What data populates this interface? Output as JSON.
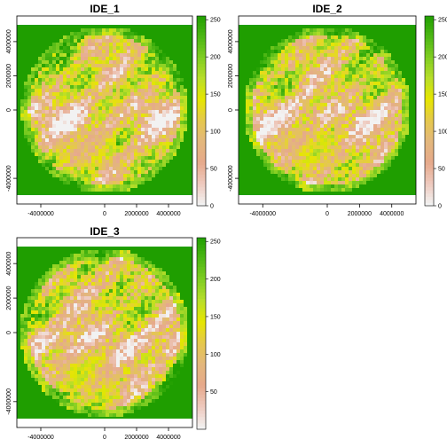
{
  "chart_data": [
    {
      "type": "heatmap",
      "title": "IDE_1",
      "x_ticks": [
        -4000000,
        0,
        2000000,
        4000000
      ],
      "x_tick_labels": [
        "-4000000",
        "0",
        "2000000",
        "4000000"
      ],
      "y_ticks": [
        -4000000,
        0,
        2000000,
        4000000
      ],
      "y_tick_labels": [
        "-4000000",
        "0",
        "2000000",
        "4000000"
      ],
      "xlim": [
        -5500000,
        5500000
      ],
      "ylim": [
        -5500000,
        5500000
      ],
      "zlim": [
        0,
        255
      ],
      "legend_ticks": [
        0,
        50,
        100,
        150,
        200,
        250
      ],
      "legend_tick_labels": [
        "0",
        "50",
        "100",
        "150",
        "200",
        "250"
      ],
      "legend_placement": "right",
      "grid": false
    },
    {
      "type": "heatmap",
      "title": "IDE_2",
      "x_ticks": [
        -4000000,
        0,
        2000000,
        4000000
      ],
      "x_tick_labels": [
        "-4000000",
        "0",
        "2000000",
        "4000000"
      ],
      "y_ticks": [
        -4000000,
        0,
        2000000,
        4000000
      ],
      "y_tick_labels": [
        "-4000000",
        "0",
        "2000000",
        "4000000"
      ],
      "xlim": [
        -5500000,
        5500000
      ],
      "ylim": [
        -5500000,
        5500000
      ],
      "zlim": [
        0,
        255
      ],
      "legend_ticks": [
        0,
        50,
        100,
        150,
        200,
        250
      ],
      "legend_tick_labels": [
        "0",
        "50",
        "100",
        "150",
        "200",
        "250"
      ],
      "legend_placement": "right",
      "grid": false
    },
    {
      "type": "heatmap",
      "title": "IDE_3",
      "x_ticks": [
        -4000000,
        0,
        2000000,
        4000000
      ],
      "x_tick_labels": [
        "-4000000",
        "0",
        "2000000",
        "4000000"
      ],
      "y_ticks": [
        -4000000,
        0,
        2000000,
        4000000
      ],
      "y_tick_labels": [
        "-4000000",
        "0",
        "2000000",
        "4000000"
      ],
      "xlim": [
        -5500000,
        5500000
      ],
      "ylim": [
        -5500000,
        5500000
      ],
      "zlim": [
        0,
        255
      ],
      "legend_ticks": [
        50,
        100,
        150,
        200,
        250
      ],
      "legend_tick_labels": [
        "50",
        "100",
        "150",
        "200",
        "250"
      ],
      "legend_placement": "right",
      "grid": false
    }
  ],
  "colors": {
    "background_value": "#1f9e00",
    "palette": [
      "#f2f2f2",
      "#eec9bd",
      "#e6a98b",
      "#e3b77c",
      "#e5c84c",
      "#e6e600",
      "#b8de2a",
      "#7fcd22",
      "#4bb614",
      "#1f9e00"
    ]
  }
}
